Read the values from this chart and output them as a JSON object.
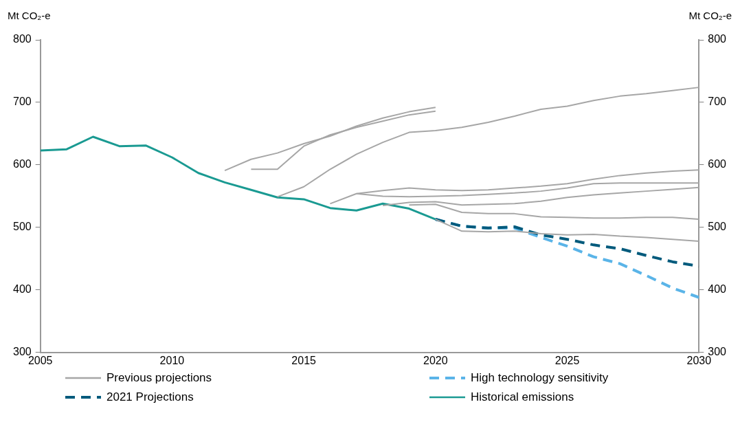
{
  "chart_data": {
    "type": "line",
    "ylabel": "Mt CO₂-e",
    "y2label": "Mt CO₂-e",
    "xlim": [
      2005,
      2030
    ],
    "xticks": [
      2005,
      2010,
      2015,
      2020,
      2025,
      2030
    ],
    "ylim": [
      300,
      800
    ],
    "yticks": [
      300,
      400,
      500,
      600,
      700,
      800
    ],
    "y2lim": [
      300,
      800
    ],
    "y2ticks": [
      300,
      400,
      500,
      600,
      700,
      800
    ],
    "grid": false,
    "legend": "bottom",
    "marker": "none",
    "series": [
      {
        "name": "Previous projections",
        "color": "#a6a6a6",
        "line_style": "solid",
        "x": [
          2012,
          2013,
          2014,
          2015,
          2016,
          2017,
          2018,
          2019,
          2020
        ],
        "values": [
          591,
          609,
          619,
          634,
          646,
          662,
          675,
          685,
          692
        ]
      },
      {
        "name": "High technology sensitivity",
        "color": "#5ab4e8",
        "line_style": "dashed",
        "x": [
          2020,
          2021,
          2022,
          2023,
          2024,
          2025,
          2026,
          2027,
          2028,
          2029,
          2030
        ],
        "values": [
          513,
          502,
          499,
          499,
          484,
          470,
          453,
          442,
          423,
          403,
          388
        ]
      },
      {
        "name": "2021 Projections",
        "color": "#005a7c",
        "line_style": "dashed",
        "x": [
          2020,
          2021,
          2022,
          2023,
          2024,
          2025,
          2026,
          2027,
          2028,
          2029,
          2030
        ],
        "values": [
          513,
          502,
          499,
          501,
          488,
          481,
          472,
          466,
          455,
          445,
          438
        ]
      },
      {
        "name": "Historical emissions",
        "color": "#1a9a92",
        "line_style": "solid",
        "x": [
          2005,
          2006,
          2007,
          2008,
          2009,
          2010,
          2011,
          2012,
          2013,
          2014,
          2015,
          2016,
          2017,
          2018,
          2019,
          2020
        ],
        "values": [
          623,
          625,
          645,
          630,
          631,
          612,
          587,
          572,
          560,
          548,
          545,
          531,
          527,
          538,
          530,
          513
        ]
      },
      {
        "color": "#a6a6a6",
        "line_style": "solid",
        "x": [
          2013,
          2014,
          2015,
          2016,
          2017,
          2018,
          2019,
          2020
        ],
        "values": [
          593,
          593,
          630,
          648,
          660,
          670,
          680,
          686
        ]
      },
      {
        "color": "#a6a6a6",
        "line_style": "solid",
        "x": [
          2014,
          2015,
          2016,
          2017,
          2018,
          2019,
          2020,
          2021,
          2022,
          2023,
          2024,
          2025,
          2026,
          2027,
          2028,
          2029,
          2030
        ],
        "values": [
          549,
          565,
          593,
          617,
          636,
          652,
          655,
          660,
          668,
          678,
          689,
          694,
          703,
          710,
          714,
          719,
          724
        ]
      },
      {
        "color": "#a6a6a6",
        "line_style": "solid",
        "x": [
          2016,
          2017,
          2018,
          2019,
          2020,
          2021,
          2022,
          2023,
          2024,
          2025,
          2026,
          2027,
          2028,
          2029,
          2030
        ],
        "values": [
          538,
          554,
          559,
          563,
          560,
          559,
          560,
          563,
          566,
          570,
          577,
          583,
          587,
          590,
          592
        ]
      },
      {
        "color": "#a6a6a6",
        "line_style": "solid",
        "x": [
          2017,
          2018,
          2019,
          2020,
          2021,
          2022,
          2023,
          2024,
          2025,
          2026,
          2027,
          2028,
          2029,
          2030
        ],
        "values": [
          554,
          550,
          549,
          550,
          551,
          553,
          555,
          558,
          563,
          570,
          571,
          571,
          571,
          571
        ]
      },
      {
        "color": "#a6a6a6",
        "line_style": "solid",
        "x": [
          2018,
          2019,
          2020,
          2021,
          2022,
          2023,
          2024,
          2025,
          2026,
          2027,
          2028,
          2029,
          2030
        ],
        "values": [
          535,
          540,
          541,
          536,
          537,
          538,
          542,
          548,
          552,
          555,
          558,
          561,
          564
        ]
      },
      {
        "color": "#a6a6a6",
        "line_style": "solid",
        "x": [
          2019,
          2020,
          2021,
          2022,
          2023,
          2024,
          2025,
          2026,
          2027,
          2028,
          2029,
          2030
        ],
        "values": [
          536,
          537,
          524,
          522,
          522,
          517,
          516,
          515,
          515,
          516,
          516,
          513
        ]
      },
      {
        "color": "#a6a6a6",
        "line_style": "solid",
        "x": [
          2020,
          2021,
          2022,
          2023,
          2024,
          2025,
          2026,
          2027,
          2028,
          2029,
          2030
        ],
        "values": [
          513,
          494,
          493,
          494,
          490,
          488,
          489,
          486,
          484,
          481,
          478
        ]
      }
    ]
  }
}
